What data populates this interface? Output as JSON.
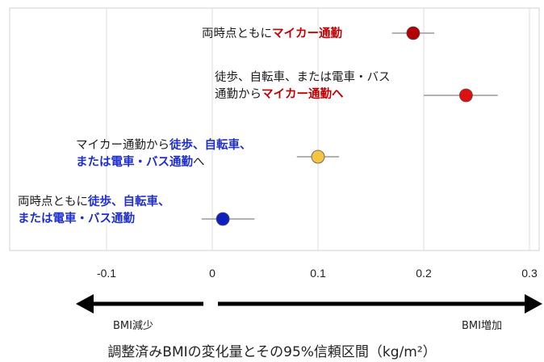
{
  "chart_data": {
    "type": "forest",
    "xlim": [
      -0.12,
      0.3
    ],
    "xticks": [
      -0.1,
      0,
      0.1,
      0.2,
      0.3
    ],
    "xtick_labels": [
      "-0.1",
      "0",
      "0.1",
      "0.2",
      "0.3"
    ],
    "grid": true,
    "xlabel": "調整済みBMIの変化量とその95%信頼区間（kg/m²）",
    "direction_labels": {
      "left": "BMI減少",
      "right": "BMI増加"
    },
    "series": [
      {
        "label_plain": "両時点ともに",
        "label_highlight": "マイカー通勤",
        "estimate": 0.19,
        "ci": [
          0.17,
          0.21
        ],
        "color": "#b30000"
      },
      {
        "label_plain": "徒歩、自転車、または電車・バス\n通勤から",
        "label_highlight": "マイカー通勤へ",
        "estimate": 0.24,
        "ci": [
          0.2,
          0.27
        ],
        "color": "#e01010"
      },
      {
        "label_plain": "マイカー通勤から",
        "label_highlight": "徒歩、自転車、\nまたは電車・バス通勤",
        "label_suffix": "へ",
        "estimate": 0.1,
        "ci": [
          0.08,
          0.12
        ],
        "color": "#f5c542"
      },
      {
        "label_plain": "両時点ともに",
        "label_highlight": "徒歩、自転車、\nまたは電車・バス通勤",
        "estimate": 0.01,
        "ci": [
          -0.01,
          0.04
        ],
        "color": "#1020c0"
      }
    ]
  }
}
